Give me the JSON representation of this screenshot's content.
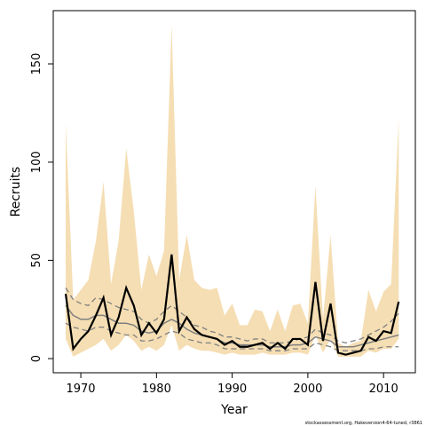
{
  "chart_data": {
    "type": "line",
    "x_label": "Year",
    "y_label": "Recruits",
    "footnote": "stockassessment.org, Hakeversion4-64-tuned, r3861",
    "x": [
      1968,
      1969,
      1970,
      1971,
      1972,
      1973,
      1974,
      1975,
      1976,
      1977,
      1978,
      1979,
      1980,
      1981,
      1982,
      1983,
      1984,
      1985,
      1986,
      1987,
      1988,
      1989,
      1990,
      1991,
      1992,
      1993,
      1994,
      1995,
      1996,
      1997,
      1998,
      1999,
      2000,
      2001,
      2002,
      2003,
      2004,
      2005,
      2006,
      2007,
      2008,
      2009,
      2010,
      2011,
      2012
    ],
    "band": {
      "color": "#f5deb3",
      "upper": [
        120,
        30,
        35,
        40,
        60,
        90,
        38,
        60,
        107,
        75,
        35,
        53,
        42,
        55,
        170,
        40,
        63,
        40,
        36,
        35,
        36,
        22,
        28,
        17,
        17,
        25,
        24,
        14,
        25,
        14,
        27,
        28,
        18,
        88,
        20,
        63,
        8,
        6,
        8,
        9,
        35,
        24,
        34,
        38,
        122
      ],
      "lower": [
        10,
        1,
        3,
        5,
        7,
        10,
        4,
        7,
        12,
        9,
        4,
        6,
        4,
        7,
        17,
        4,
        7,
        5,
        4,
        4,
        3,
        2,
        3,
        2,
        2,
        2,
        3,
        2,
        2,
        2,
        3,
        3,
        2,
        12,
        3,
        10,
        1,
        1,
        1,
        1,
        4,
        3,
        5,
        5,
        10
      ]
    },
    "series": [
      {
        "color": "#808080",
        "dash": false,
        "width": 1.5,
        "values": [
          27,
          22,
          20,
          20,
          22,
          22,
          20,
          18,
          18,
          17,
          14,
          13,
          14,
          18,
          20,
          18,
          15,
          13,
          12,
          11,
          10,
          8,
          8,
          7,
          7,
          7,
          7,
          6,
          6,
          6,
          7,
          7,
          8,
          11,
          10,
          9,
          6,
          6,
          6,
          7,
          8,
          9,
          10,
          11,
          12
        ]
      },
      {
        "color": "#808080",
        "dash": true,
        "width": 1.3,
        "values": [
          36,
          30,
          28,
          27,
          31,
          30,
          28,
          26,
          25,
          24,
          20,
          18,
          20,
          24,
          27,
          24,
          21,
          17,
          16,
          14,
          13,
          11,
          11,
          10,
          9,
          10,
          10,
          8,
          8,
          8,
          9,
          10,
          11,
          15,
          13,
          12,
          9,
          8,
          9,
          10,
          12,
          14,
          16,
          19,
          23
        ]
      },
      {
        "color": "#808080",
        "dash": true,
        "width": 1.3,
        "values": [
          18,
          16,
          15,
          14,
          16,
          16,
          14,
          13,
          12,
          12,
          9,
          9,
          10,
          12,
          14,
          13,
          10,
          9,
          8,
          8,
          7,
          5,
          5,
          5,
          5,
          5,
          5,
          4,
          4,
          4,
          5,
          5,
          5,
          8,
          7,
          6,
          4,
          4,
          4,
          4,
          5,
          5,
          6,
          6,
          6
        ]
      },
      {
        "color": "#000000",
        "dash": false,
        "width": 2.2,
        "values": [
          33,
          5,
          10,
          14,
          22,
          31,
          12,
          21,
          36,
          27,
          12,
          18,
          13,
          20,
          53,
          14,
          21,
          15,
          12,
          11,
          10,
          7,
          9,
          6,
          6,
          7,
          8,
          5,
          8,
          5,
          10,
          10,
          7,
          39,
          9,
          28,
          3,
          2,
          3,
          4,
          11,
          9,
          14,
          13,
          29
        ]
      }
    ],
    "xlim": [
      1966.36,
      2014.2
    ],
    "ylim": [
      -7.2,
      177.1
    ],
    "xticks": [
      1970,
      1980,
      1990,
      2000,
      2010
    ],
    "yticks": [
      0,
      50,
      100,
      150
    ]
  }
}
